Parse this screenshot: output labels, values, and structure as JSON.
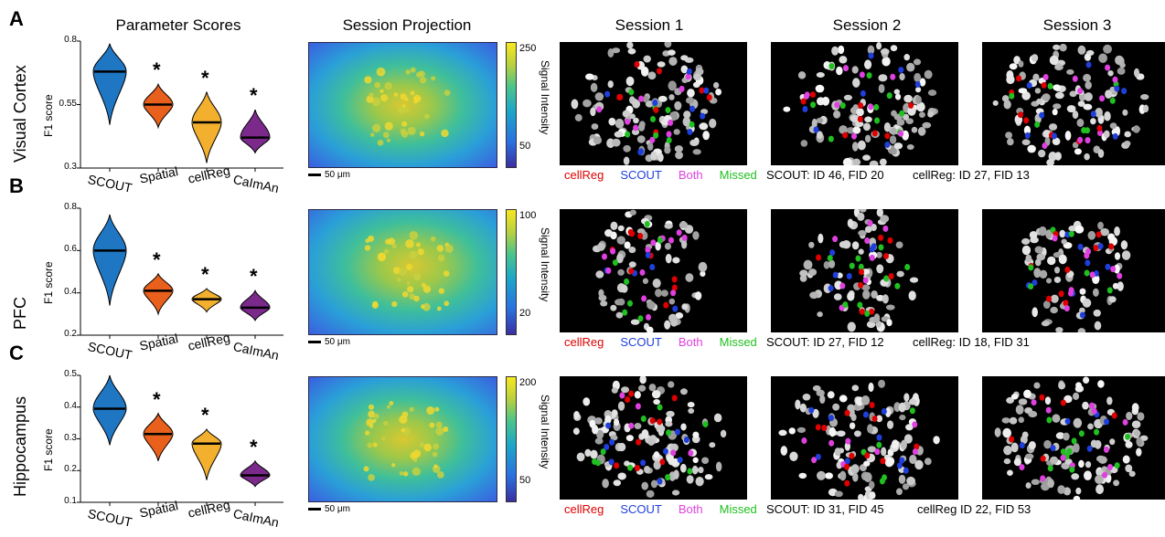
{
  "headers": {
    "parameter_scores": "Parameter Scores",
    "session_projection": "Session Projection",
    "session1": "Session 1",
    "session2": "Session 2",
    "session3": "Session 3"
  },
  "colors": {
    "SCOUT": "#1f77c4",
    "Spatial": "#e8601c",
    "cellReg": "#f2b02e",
    "CaImAn": "#7b2a8c",
    "legend_cellReg": "#e00000",
    "legend_SCOUT": "#1f3fdc",
    "legend_Both": "#e040e0",
    "legend_Missed": "#20c020"
  },
  "legend": {
    "cellReg": "cellReg",
    "SCOUT": "SCOUT",
    "Both": "Both",
    "Missed": "Missed"
  },
  "star": "*",
  "scale_label": "50 μm",
  "colorbar_title": "Signal Intensity",
  "chart_data": [
    {
      "type": "violin",
      "panel": "A",
      "row_label": "Visual Cortex",
      "ylabel": "F1 score",
      "ylim": [
        0.3,
        0.8
      ],
      "yticks": [
        "0.3",
        "0.55",
        "0.8"
      ],
      "categories": [
        "SCOUT",
        "Spatial",
        "cellReg",
        "CaImAn"
      ],
      "medians": [
        0.68,
        0.55,
        0.48,
        0.42
      ],
      "mins": [
        0.47,
        0.46,
        0.32,
        0.36
      ],
      "maxs": [
        0.79,
        0.63,
        0.6,
        0.53
      ],
      "significant": [
        false,
        true,
        true,
        true
      ],
      "colorbar_ticks": [
        "250",
        "50"
      ],
      "id_text_scout": "SCOUT: ID 46, FID 20",
      "id_text_cellreg": "cellReg: ID 27, FID 13"
    },
    {
      "type": "violin",
      "panel": "B",
      "row_label": "PFC",
      "ylabel": "F1 score",
      "ylim": [
        0.2,
        0.8
      ],
      "yticks": [
        "0.2",
        "0.4",
        "0.6",
        "0.8"
      ],
      "categories": [
        "SCOUT",
        "Spatial",
        "cellReg",
        "CaImAn"
      ],
      "medians": [
        0.6,
        0.41,
        0.37,
        0.33
      ],
      "mins": [
        0.34,
        0.3,
        0.31,
        0.27
      ],
      "maxs": [
        0.77,
        0.49,
        0.42,
        0.41
      ],
      "significant": [
        false,
        true,
        true,
        true
      ],
      "colorbar_ticks": [
        "100",
        "20"
      ],
      "id_text_scout": "SCOUT: ID 27, FID 12",
      "id_text_cellreg": "cellReg: ID 18, FID 31"
    },
    {
      "type": "violin",
      "panel": "C",
      "row_label": "Hippocampus",
      "ylabel": "F1 score",
      "ylim": [
        0.1,
        0.5
      ],
      "yticks": [
        "0.1",
        "0.2",
        "0.3",
        "0.4",
        "0.5"
      ],
      "categories": [
        "SCOUT",
        "Spatial",
        "cellReg",
        "CaImAn"
      ],
      "medians": [
        0.395,
        0.315,
        0.285,
        0.185
      ],
      "mins": [
        0.28,
        0.23,
        0.17,
        0.15
      ],
      "maxs": [
        0.5,
        0.38,
        0.33,
        0.23
      ],
      "significant": [
        false,
        true,
        true,
        true
      ],
      "colorbar_ticks": [
        "200",
        "50"
      ],
      "id_text_scout": "SCOUT: ID 31, FID 45",
      "id_text_cellreg": "cellReg ID 22, FID 53"
    }
  ]
}
